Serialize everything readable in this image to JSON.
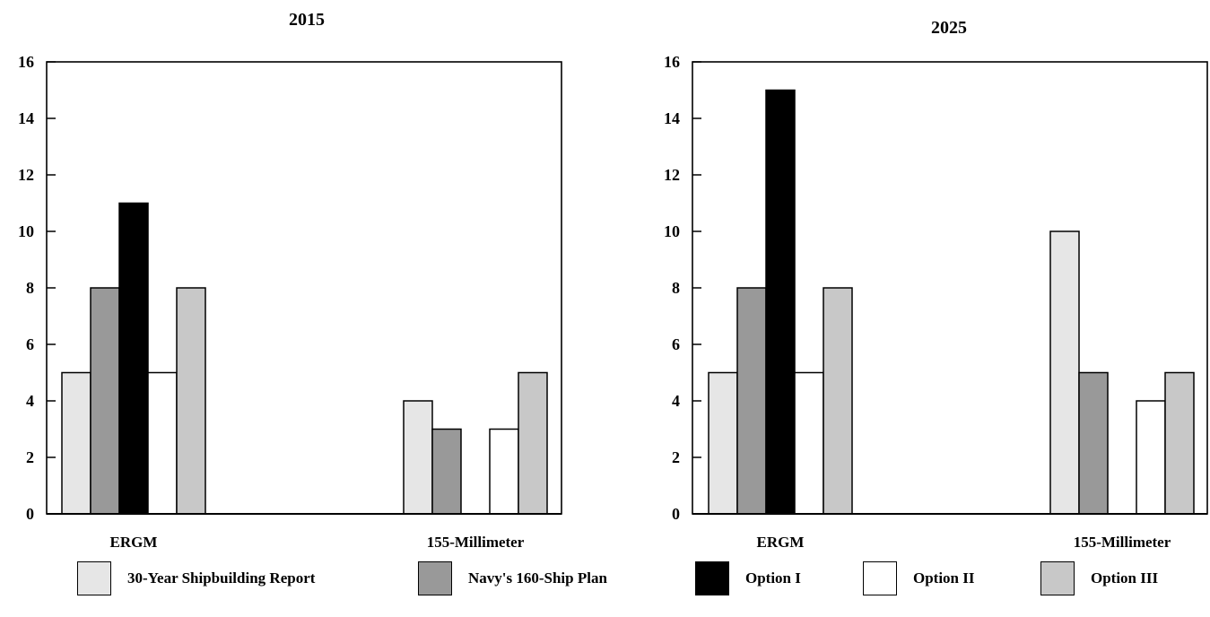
{
  "chart_data": [
    {
      "type": "bar",
      "title": "2015",
      "categories": [
        "ERGM",
        "155-Millimeter"
      ],
      "ylim": [
        0,
        16
      ],
      "yticks": [
        0,
        2,
        4,
        6,
        8,
        10,
        12,
        14,
        16
      ],
      "grid": false,
      "legend": "bottom",
      "series": [
        {
          "name": "30-Year Shipbuilding Report",
          "values": [
            5,
            4
          ]
        },
        {
          "name": "Navy's 160-Ship Plan",
          "values": [
            8,
            3
          ]
        },
        {
          "name": "Option I",
          "values": [
            11,
            0
          ]
        },
        {
          "name": "Option II",
          "values": [
            5,
            3
          ]
        },
        {
          "name": "Option III",
          "values": [
            8,
            5
          ]
        }
      ]
    },
    {
      "type": "bar",
      "title": "2025",
      "categories": [
        "ERGM",
        "155-Millimeter"
      ],
      "ylim": [
        0,
        16
      ],
      "yticks": [
        0,
        2,
        4,
        6,
        8,
        10,
        12,
        14,
        16
      ],
      "grid": false,
      "legend": "bottom",
      "series": [
        {
          "name": "30-Year Shipbuilding Report",
          "values": [
            5,
            10
          ]
        },
        {
          "name": "Navy's 160-Ship Plan",
          "values": [
            8,
            5
          ]
        },
        {
          "name": "Option I",
          "values": [
            15,
            0
          ]
        },
        {
          "name": "Option II",
          "values": [
            5,
            4
          ]
        },
        {
          "name": "Option III",
          "values": [
            8,
            5
          ]
        }
      ]
    }
  ],
  "series_colors": [
    "#e6e6e6",
    "#999999",
    "#000000",
    "#ffffff",
    "#c8c8c8"
  ],
  "legend": {
    "items": [
      {
        "label": "30-Year Shipbuilding Report",
        "color": "#e6e6e6"
      },
      {
        "label": "Navy's 160-Ship Plan",
        "color": "#999999"
      },
      {
        "label": "Option I",
        "color": "#000000"
      },
      {
        "label": "Option II",
        "color": "#ffffff"
      },
      {
        "label": "Option III",
        "color": "#c8c8c8"
      }
    ]
  }
}
